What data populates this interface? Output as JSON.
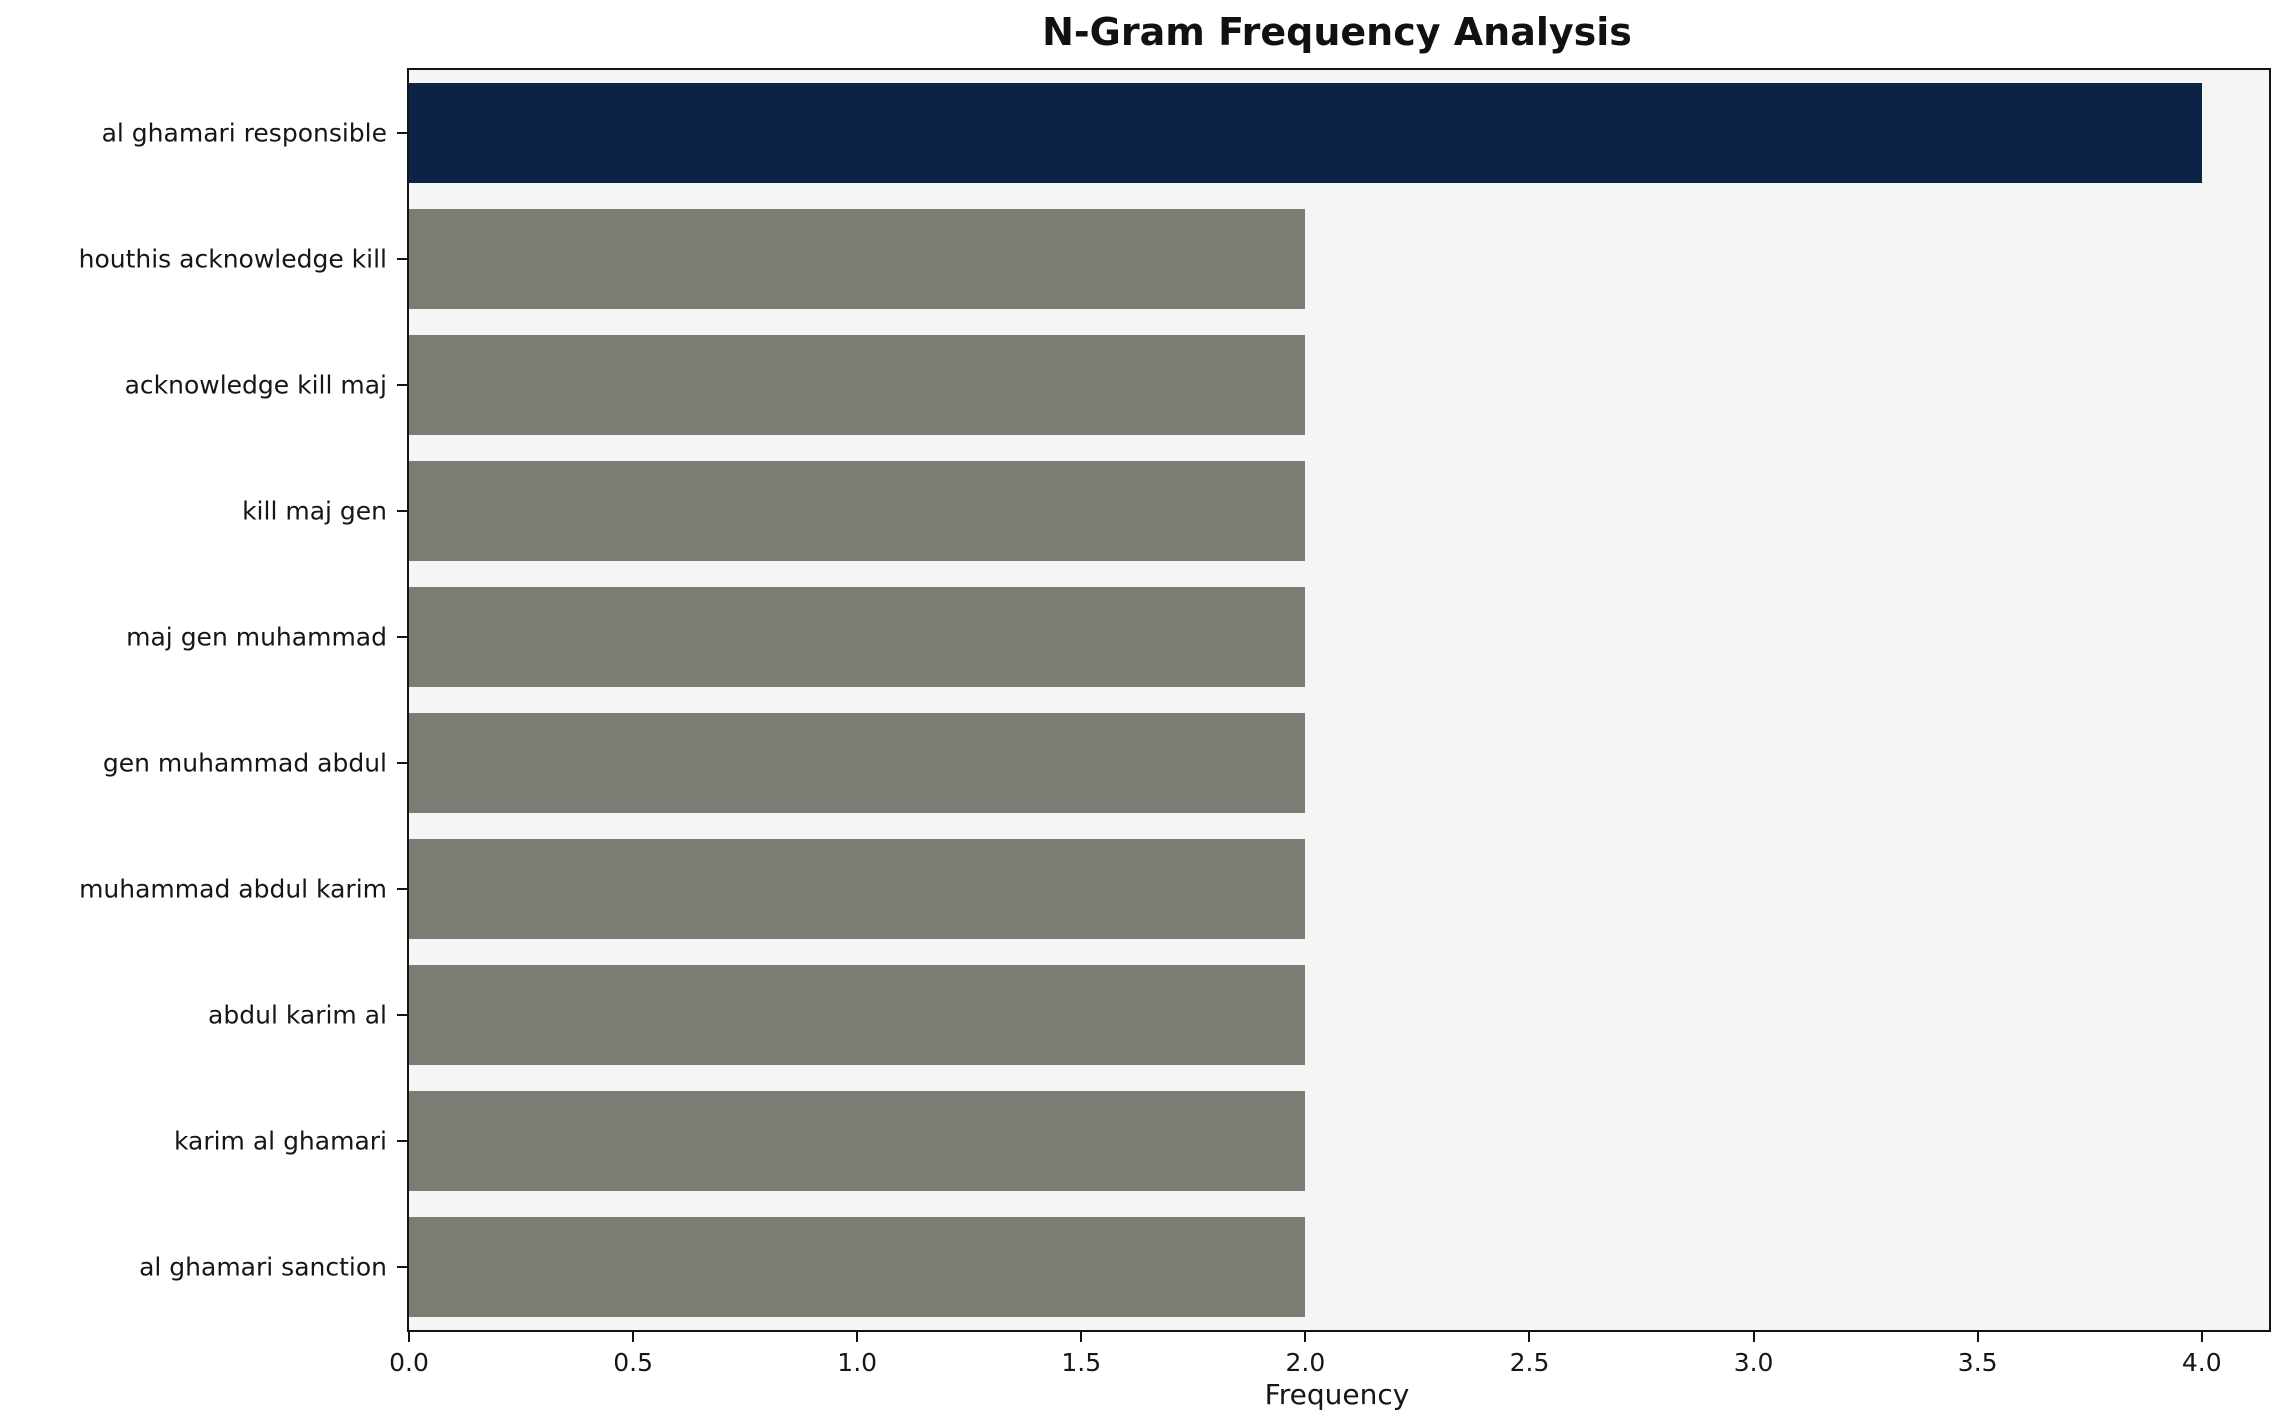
{
  "chart_data": {
    "type": "bar",
    "orientation": "horizontal",
    "title": "N-Gram Frequency Analysis",
    "xlabel": "Frequency",
    "ylabel": "",
    "categories": [
      "al ghamari responsible",
      "houthis acknowledge kill",
      "acknowledge kill maj",
      "kill maj gen",
      "maj gen muhammad",
      "gen muhammad abdul",
      "muhammad abdul karim",
      "abdul karim al",
      "karim al ghamari",
      "al ghamari sanction"
    ],
    "values": [
      4,
      2,
      2,
      2,
      2,
      2,
      2,
      2,
      2,
      2
    ],
    "xlim": [
      0,
      4.15
    ],
    "xticks": [
      0.0,
      0.5,
      1.0,
      1.5,
      2.0,
      2.5,
      3.0,
      3.5,
      4.0
    ],
    "grid": false,
    "legend": "none",
    "colors": {
      "highlight_bar": "#0d2345",
      "default_bar": "#7c7b74",
      "plot_background": "#f5f5f5",
      "axis": "#141414",
      "text": "#161616"
    },
    "bar_thickness_fraction": 0.8
  }
}
